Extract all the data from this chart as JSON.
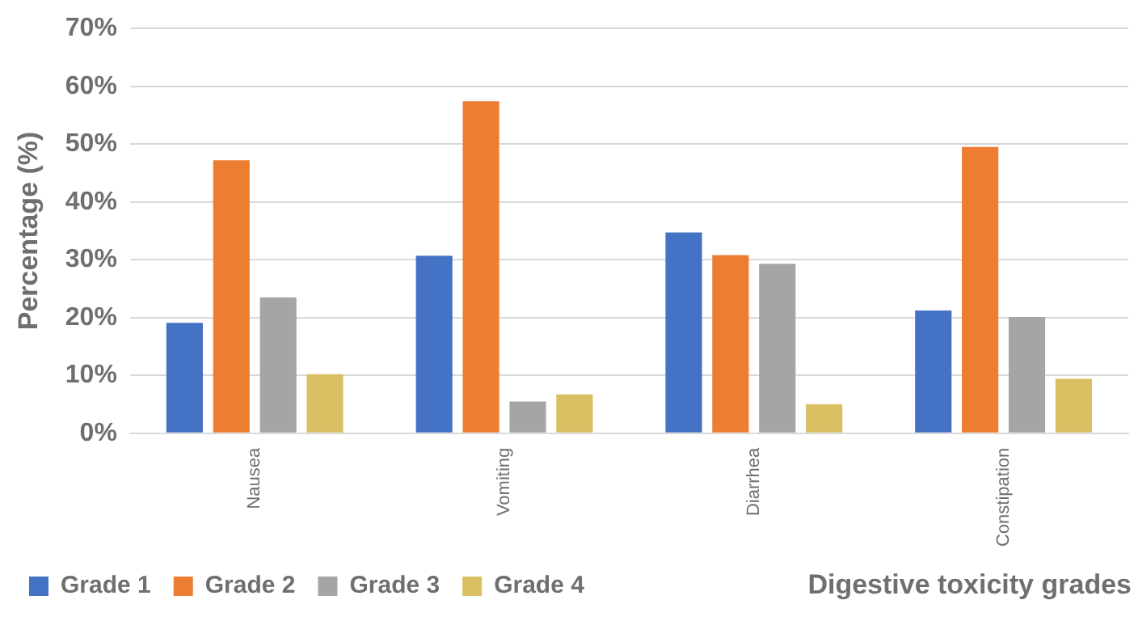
{
  "chart_data": {
    "type": "bar",
    "xlabel": "Digestive toxicity grades",
    "ylabel": "Percentage (%)",
    "categories": [
      "Nausea",
      "Vomiting",
      "Diarrhea",
      "Constipation"
    ],
    "series": [
      {
        "name": "Grade 1",
        "color": "#4472c4",
        "values": [
          19.1,
          30.7,
          34.7,
          21.2
        ]
      },
      {
        "name": "Grade 2",
        "color": "#ed7d31",
        "values": [
          47.2,
          57.4,
          30.8,
          49.5
        ]
      },
      {
        "name": "Grade 3",
        "color": "#a5a5a5",
        "values": [
          23.5,
          5.5,
          29.3,
          20.1
        ]
      },
      {
        "name": "Grade 4",
        "color": "#d9bf62",
        "values": [
          10.2,
          6.7,
          5.0,
          9.4
        ]
      }
    ],
    "ylim": [
      0,
      70
    ],
    "yticks": [
      {
        "value": 0,
        "label": "0%"
      },
      {
        "value": 10,
        "label": "10%"
      },
      {
        "value": 20,
        "label": "20%"
      },
      {
        "value": 30,
        "label": "30%"
      },
      {
        "value": 40,
        "label": "40%"
      },
      {
        "value": 50,
        "label": "50%"
      },
      {
        "value": 60,
        "label": "60%"
      },
      {
        "value": 70,
        "label": "70%"
      }
    ],
    "grid": "y",
    "legend": "bottom"
  }
}
